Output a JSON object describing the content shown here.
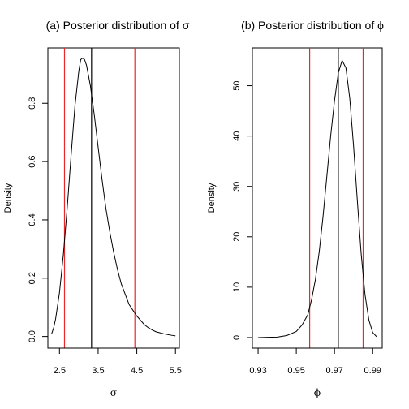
{
  "chart_data": [
    {
      "type": "line",
      "title": "(a) Posterior distribution of σ",
      "xlabel": "σ",
      "ylabel": "Density",
      "xlim": [
        2.2,
        5.6
      ],
      "ylim": [
        -0.04,
        0.99
      ],
      "xticks": [
        2.5,
        3.5,
        4.5,
        5.5
      ],
      "xtick_labels": [
        "2.5",
        "3.5",
        "4.5",
        "5.5"
      ],
      "yticks": [
        0.0,
        0.2,
        0.4,
        0.6,
        0.8
      ],
      "ytick_labels": [
        "0.0",
        "0.2",
        "0.4",
        "0.6",
        "0.8"
      ],
      "colors": {
        "curve": "#000000",
        "interval": "#e8282b",
        "point": "#000000"
      },
      "series": [
        {
          "x": [
            2.3,
            2.35,
            2.4,
            2.5,
            2.6,
            2.7,
            2.8,
            2.9,
            3.0,
            3.05,
            3.1,
            3.15,
            3.2,
            3.3,
            3.4,
            3.5,
            3.6,
            3.7,
            3.8,
            3.9,
            4.0,
            4.1,
            4.2,
            4.3,
            4.4,
            4.5,
            4.6,
            4.7,
            4.8,
            4.9,
            5.0,
            5.2,
            5.4,
            5.5
          ],
          "y": [
            0.01,
            0.03,
            0.06,
            0.15,
            0.28,
            0.44,
            0.62,
            0.79,
            0.91,
            0.95,
            0.955,
            0.95,
            0.93,
            0.86,
            0.76,
            0.65,
            0.54,
            0.44,
            0.36,
            0.29,
            0.23,
            0.18,
            0.145,
            0.11,
            0.09,
            0.07,
            0.055,
            0.04,
            0.03,
            0.022,
            0.016,
            0.009,
            0.004,
            0.002
          ]
        }
      ],
      "vlines": [
        {
          "x": 2.63,
          "color": "#e8282b"
        },
        {
          "x": 3.33,
          "color": "#000000"
        },
        {
          "x": 4.45,
          "color": "#e8282b"
        }
      ]
    },
    {
      "type": "line",
      "title": "(b) Posterior distribution of ϕ",
      "xlabel": "ϕ",
      "ylabel": "Density",
      "xlim": [
        0.927,
        0.995
      ],
      "ylim": [
        -2.1,
        57.5
      ],
      "xticks": [
        0.93,
        0.95,
        0.97,
        0.99
      ],
      "xtick_labels": [
        "0.93",
        "0.95",
        "0.97",
        "0.99"
      ],
      "yticks": [
        0,
        10,
        20,
        30,
        40,
        50
      ],
      "ytick_labels": [
        "0",
        "10",
        "20",
        "30",
        "40",
        "50"
      ],
      "colors": {
        "curve": "#000000",
        "interval": "#e8282b",
        "point": "#000000"
      },
      "series": [
        {
          "x": [
            0.93,
            0.935,
            0.94,
            0.945,
            0.95,
            0.953,
            0.956,
            0.958,
            0.96,
            0.962,
            0.964,
            0.966,
            0.968,
            0.97,
            0.972,
            0.974,
            0.976,
            0.978,
            0.98,
            0.982,
            0.984,
            0.986,
            0.988,
            0.99,
            0.992
          ],
          "y": [
            0.0,
            0.05,
            0.1,
            0.4,
            1.2,
            2.5,
            4.5,
            7.5,
            11.5,
            17.0,
            24.0,
            32.0,
            40.0,
            47.0,
            52.5,
            55.0,
            53.5,
            47.5,
            38.0,
            27.0,
            16.5,
            8.5,
            3.5,
            1.0,
            0.2
          ]
        }
      ],
      "vlines": [
        {
          "x": 0.957,
          "color": "#e8282b"
        },
        {
          "x": 0.972,
          "color": "#000000"
        },
        {
          "x": 0.985,
          "color": "#e8282b"
        }
      ]
    }
  ]
}
